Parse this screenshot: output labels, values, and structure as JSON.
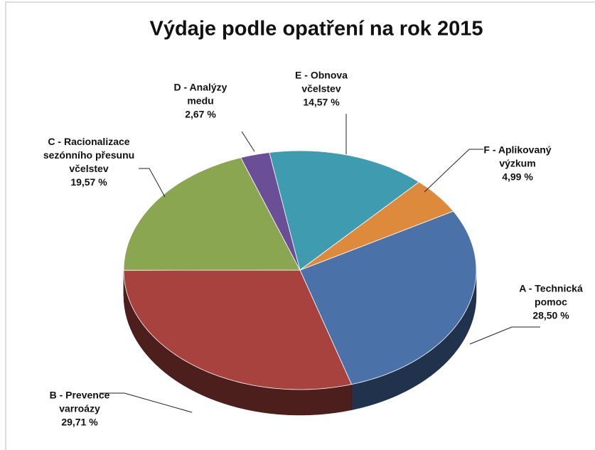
{
  "chart_data": {
    "type": "pie",
    "title": "Výdaje podle opatření na rok 2015",
    "categories": [
      "A - Technická pomoc",
      "B - Prevence varroázy",
      "C - Racionalizace sezónního přesunu včelstev",
      "D - Analýzy medu",
      "E - Obnova včelstev",
      "F - Aplikovaný výzkum"
    ],
    "values": [
      28.5,
      29.71,
      19.57,
      2.67,
      14.57,
      4.99
    ],
    "value_labels": [
      "28,50 %",
      "29,71 %",
      "19,57 %",
      "2,67 %",
      "14,57 %",
      "4,99 %"
    ],
    "colors": [
      "#4a72a8",
      "#a8423f",
      "#8aa650",
      "#6b4f96",
      "#3e9bb0",
      "#dd8a3d"
    ]
  }
}
